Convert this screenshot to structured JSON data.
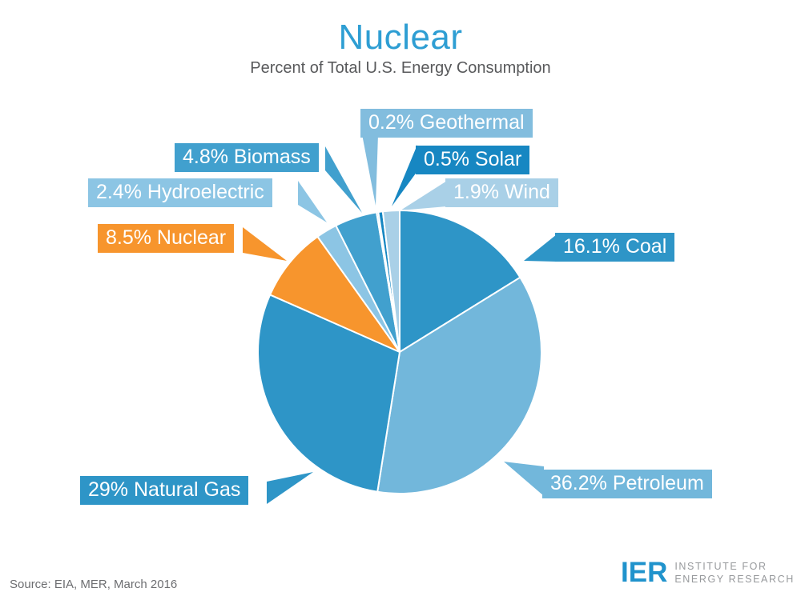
{
  "title": "Nuclear",
  "subtitle": "Percent of Total U.S. Energy Consumption",
  "source": "Source: EIA, MER, March 2016",
  "logo": {
    "abbr": "IER",
    "line1": "INSTITUTE FOR",
    "line2": "ENERGY RESEARCH"
  },
  "colors": {
    "title": "#2E9ED3",
    "subtitle": "#58595B",
    "source": "#6D6E71",
    "logo_blue": "#2093CC",
    "logo_gray": "#97999C",
    "slice_border": "#FFFFFF",
    "label_text": "#FFFFFF"
  },
  "chart_data": {
    "type": "pie",
    "title": "Nuclear",
    "subtitle": "Percent of Total U.S. Energy Consumption",
    "start_angle_deg": 0,
    "direction": "clockwise",
    "highlighted_slice": "Nuclear",
    "slices": [
      {
        "label": "Coal",
        "value": 16.1,
        "display": "16.1% Coal",
        "color": "#2E95C7"
      },
      {
        "label": "Petroleum",
        "value": 36.2,
        "display": "36.2% Petroleum",
        "color": "#72B7DB"
      },
      {
        "label": "Natural Gas",
        "value": 29,
        "display": "29% Natural Gas",
        "color": "#2E95C7"
      },
      {
        "label": "Nuclear",
        "value": 8.5,
        "display": "8.5% Nuclear",
        "color": "#F7952D"
      },
      {
        "label": "Hydroelectric",
        "value": 2.4,
        "display": "2.4% Hydroelectric",
        "color": "#8CC5E4"
      },
      {
        "label": "Biomass",
        "value": 4.8,
        "display": "4.8% Biomass",
        "color": "#41A0CE"
      },
      {
        "label": "Geothermal",
        "value": 0.2,
        "display": "0.2% Geothermal",
        "color": "#82BDDE"
      },
      {
        "label": "Solar",
        "value": 0.5,
        "display": "0.5% Solar",
        "color": "#1787C2"
      },
      {
        "label": "Wind",
        "value": 1.9,
        "display": "1.9% Wind",
        "color": "#A9D0E7"
      }
    ]
  }
}
